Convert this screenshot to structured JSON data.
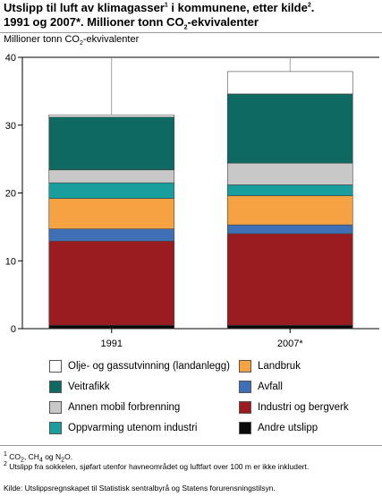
{
  "title": {
    "line1_pre": "Utslipp til luft av klimagasser",
    "line1_sup1": "1",
    "line1_mid": " i kommunene, etter kilde",
    "line1_sup2": "2",
    "line1_end": ".",
    "line2_pre": "1991 og 2007*. Millioner tonn CO",
    "line2_sub": "2",
    "line2_end": "-ekvivalenter"
  },
  "axis_label": {
    "pre": "Millioner tonn CO",
    "sub": "2",
    "post": "-ekvivalenter"
  },
  "chart_data": {
    "type": "bar",
    "stacked": true,
    "categories": [
      "1991",
      "2007*"
    ],
    "ylim": [
      0,
      40
    ],
    "yticks": [
      "0",
      "10",
      "20",
      "30",
      "40"
    ],
    "grid": false,
    "series": [
      {
        "name": "Andre utslipp",
        "color": "#0a0a0a",
        "values": [
          0.5,
          0.5
        ]
      },
      {
        "name": "Industri og bergverk",
        "color": "#9b1c20",
        "values": [
          12.4,
          13.5
        ]
      },
      {
        "name": "Avfall",
        "color": "#3f6fb5",
        "values": [
          1.8,
          1.3
        ]
      },
      {
        "name": "Landbruk",
        "color": "#f4a242",
        "values": [
          4.5,
          4.3
        ]
      },
      {
        "name": "Oppvarming utenom industri",
        "color": "#189e9c",
        "values": [
          2.3,
          1.6
        ]
      },
      {
        "name": "Annen mobil forbrenning",
        "color": "#c8c8c8",
        "values": [
          1.9,
          3.2
        ]
      },
      {
        "name": "Veitrafikk",
        "color": "#0d6962",
        "values": [
          7.8,
          10.2
        ]
      },
      {
        "name": "Olje- og gassutvinning (landanlegg)",
        "color": "#ffffff",
        "values": [
          0.3,
          3.3
        ]
      }
    ]
  },
  "legend": [
    {
      "label": "Olje- og gassutvinning (landanlegg)",
      "color": "#ffffff"
    },
    {
      "label": "Landbruk",
      "color": "#f4a242"
    },
    {
      "label": "Veitrafikk",
      "color": "#0d6962"
    },
    {
      "label": "Avfall",
      "color": "#3f6fb5"
    },
    {
      "label": "Annen mobil forbrenning",
      "color": "#c8c8c8"
    },
    {
      "label": "Industri og bergverk",
      "color": "#9b1c20"
    },
    {
      "label": "Oppvarming utenom industri",
      "color": "#189e9c"
    },
    {
      "label": "Andre utslipp",
      "color": "#0a0a0a"
    }
  ],
  "footnotes": {
    "f1_num": "1",
    "f1_a": " CO",
    "f1_a_sub": "2",
    "f1_b": ", CH",
    "f1_b_sub": "4",
    "f1_c": " og N",
    "f1_c_sub": "2",
    "f1_d": "O.",
    "f2_num": "2",
    "f2_text": " Utslipp fra sokkelen, sjøfart utenfor havneområdet og luftfart over 100 m er ikke inkludert.",
    "source": "Kilde: Utslippsregnskapet til Statistisk sentralbyrå og Statens forurensningstilsyn."
  }
}
